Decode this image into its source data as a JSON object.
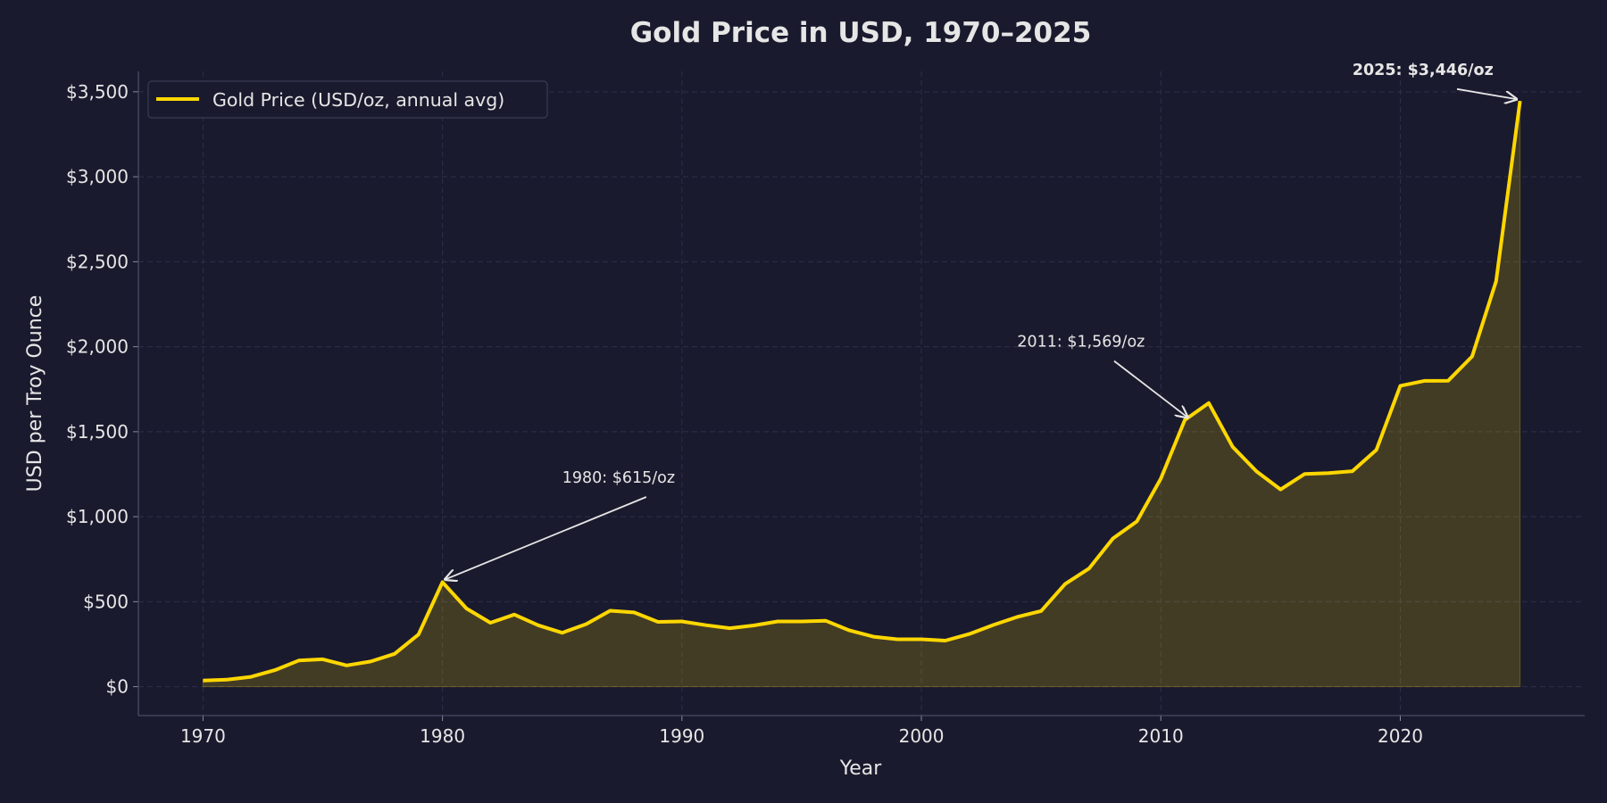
{
  "chart_data": {
    "type": "area",
    "title": "Gold Price in USD, 1970–2025",
    "xlabel": "Year",
    "ylabel": "USD per Troy Ounce",
    "xlim": [
      1967.3,
      2027.7
    ],
    "ylim": [
      -170,
      3620
    ],
    "xticks": [
      1970,
      1980,
      1990,
      2000,
      2010,
      2020
    ],
    "yticks": [
      0,
      500,
      1000,
      1500,
      2000,
      2500,
      3000,
      3500
    ],
    "ytick_labels": [
      "$0",
      "$500",
      "$1,000",
      "$1,500",
      "$2,000",
      "$2,500",
      "$3,000",
      "$3,500"
    ],
    "grid": true,
    "legend_position": "top-left",
    "colors": {
      "background": "#1a1a2e",
      "line": "#FFD700",
      "grid": "#2e2e4a",
      "text": "#e6e6e6"
    },
    "series": [
      {
        "name": "Gold Price (USD/oz, annual avg)",
        "x": [
          1970,
          1971,
          1972,
          1973,
          1974,
          1975,
          1976,
          1977,
          1978,
          1979,
          1980,
          1981,
          1982,
          1983,
          1984,
          1985,
          1986,
          1987,
          1988,
          1989,
          1990,
          1991,
          1992,
          1993,
          1994,
          1995,
          1996,
          1997,
          1998,
          1999,
          2000,
          2001,
          2002,
          2003,
          2004,
          2005,
          2006,
          2007,
          2008,
          2009,
          2010,
          2011,
          2012,
          2013,
          2014,
          2015,
          2016,
          2017,
          2018,
          2019,
          2020,
          2021,
          2022,
          2023,
          2024,
          2025
        ],
        "values": [
          36,
          41,
          58,
          97,
          154,
          161,
          125,
          148,
          193,
          307,
          615,
          460,
          376,
          424,
          361,
          317,
          368,
          447,
          437,
          381,
          384,
          362,
          344,
          360,
          384,
          384,
          388,
          331,
          294,
          279,
          279,
          271,
          310,
          363,
          410,
          445,
          604,
          695,
          872,
          972,
          1225,
          1569,
          1669,
          1411,
          1266,
          1160,
          1251,
          1257,
          1268,
          1393,
          1770,
          1799,
          1800,
          1943,
          2386,
          3446
        ]
      }
    ],
    "annotations": [
      {
        "text": "1980: $615/oz",
        "x": 1980,
        "y": 615,
        "text_x": 1985,
        "text_y": 1200,
        "bold": false
      },
      {
        "text": "2011: $1,569/oz",
        "x": 2011,
        "y": 1569,
        "text_x": 2004,
        "text_y": 2000,
        "bold": false
      },
      {
        "text": "2025: $3,446/oz",
        "x": 2025,
        "y": 3446,
        "text_x": 2018,
        "text_y": 3600,
        "bold": true
      }
    ]
  }
}
